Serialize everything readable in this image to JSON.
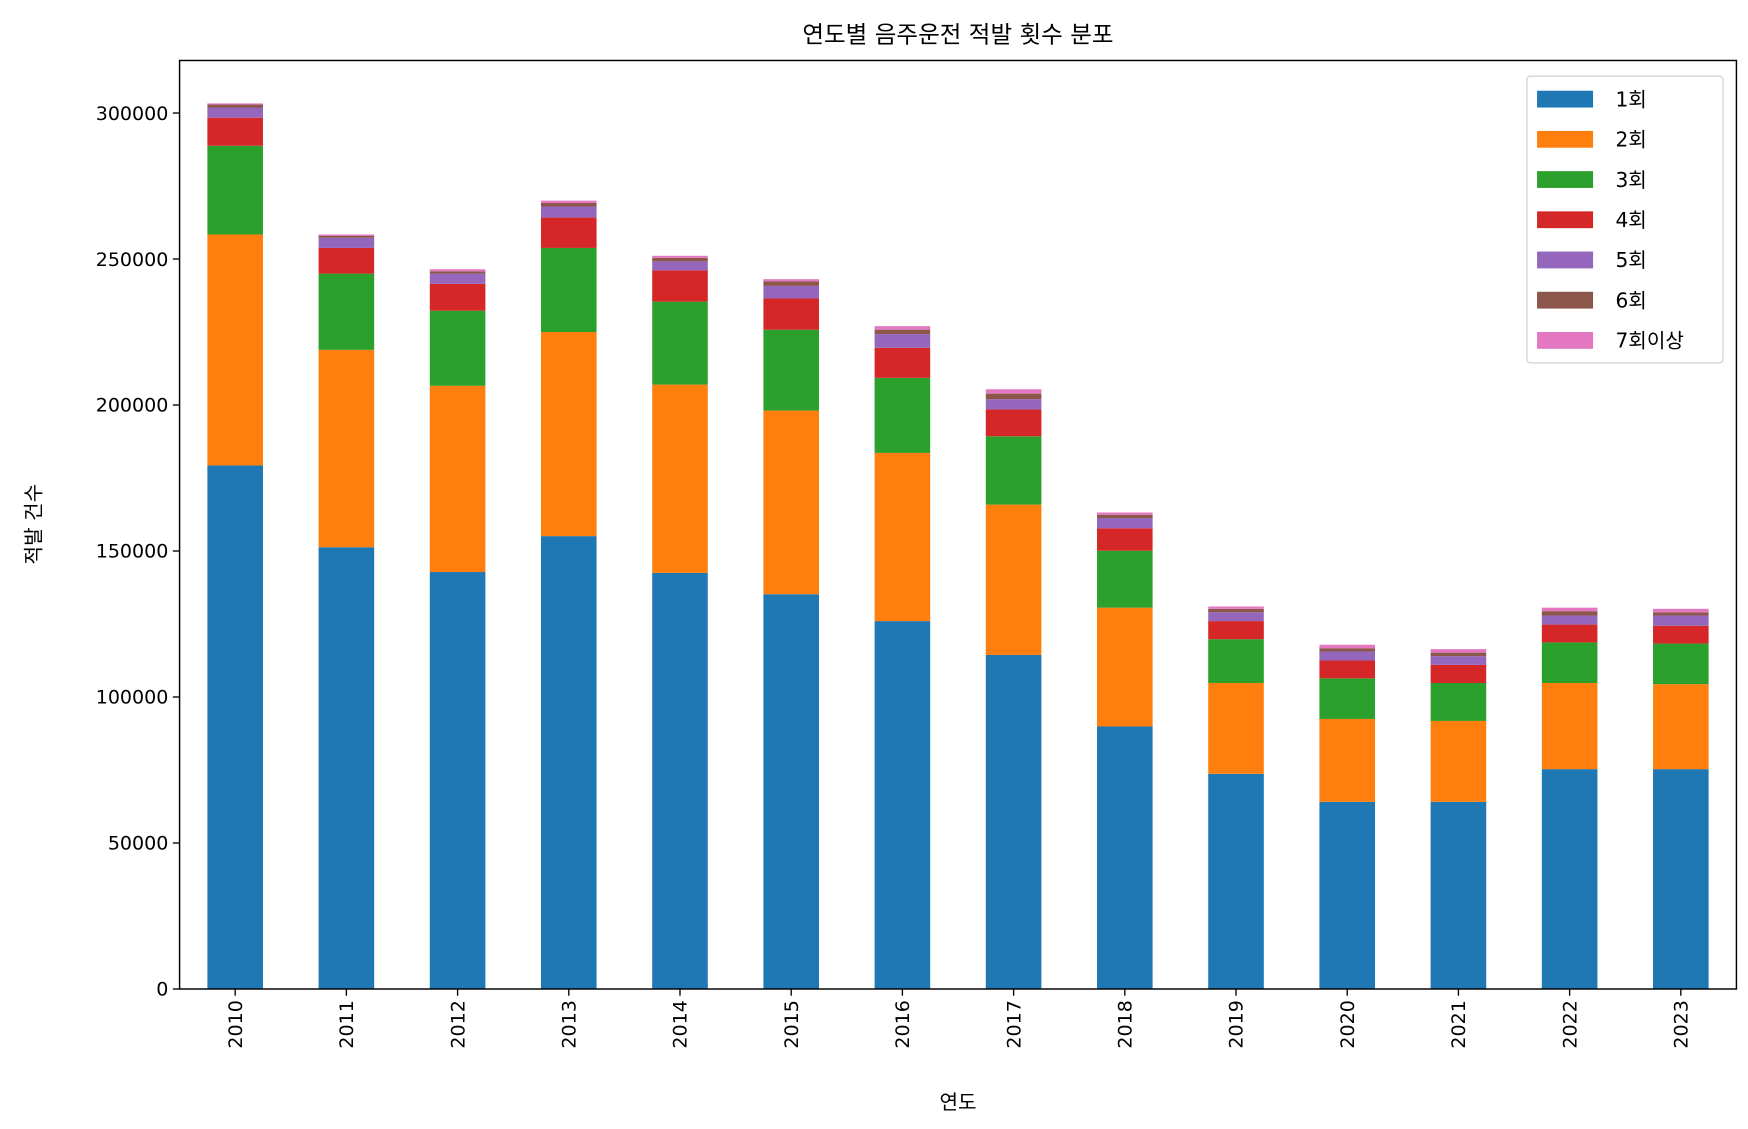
{
  "chart_data": {
    "type": "bar",
    "stacked": true,
    "title": "연도별 음주운전 적발 횟수 분포",
    "xlabel": "연도",
    "ylabel": "적발 건수",
    "ylim": [
      0,
      318000
    ],
    "yticks": [
      0,
      50000,
      100000,
      150000,
      200000,
      250000,
      300000
    ],
    "grid": false,
    "legend_position": "top-right",
    "categories": [
      "2010",
      "2011",
      "2012",
      "2013",
      "2014",
      "2015",
      "2016",
      "2017",
      "2018",
      "2019",
      "2020",
      "2021",
      "2022",
      "2023"
    ],
    "series": [
      {
        "name": "1회",
        "color": "#1f77b4",
        "values": [
          179300,
          151300,
          142800,
          155100,
          142500,
          135200,
          126000,
          114400,
          89900,
          73700,
          64100,
          64100,
          75300,
          75300
        ]
      },
      {
        "name": "2회",
        "color": "#ff7f0e",
        "values": [
          79100,
          67600,
          63800,
          69900,
          64500,
          62900,
          57600,
          51500,
          40700,
          31100,
          28400,
          27700,
          29500,
          29100
        ]
      },
      {
        "name": "3회",
        "color": "#2ca02c",
        "values": [
          30400,
          26100,
          25700,
          28800,
          28400,
          27700,
          25700,
          23400,
          19500,
          15000,
          13900,
          13000,
          13900,
          13900
        ]
      },
      {
        "name": "4회",
        "color": "#d62728",
        "values": [
          9600,
          8800,
          9200,
          10400,
          10700,
          10700,
          10300,
          9200,
          7700,
          6200,
          6100,
          6200,
          6100,
          6100
        ]
      },
      {
        "name": "5회",
        "color": "#9467bd",
        "values": [
          3500,
          3500,
          3500,
          3800,
          3100,
          4300,
          4700,
          3500,
          3500,
          3000,
          3100,
          3000,
          3100,
          3500
        ]
      },
      {
        "name": "6회",
        "color": "#8c564b",
        "values": [
          1000,
          700,
          800,
          1200,
          1200,
          1500,
          1500,
          1900,
          1100,
          1200,
          1100,
          1200,
          1500,
          1100
        ]
      },
      {
        "name": "7회이상",
        "color": "#e377c2",
        "values": [
          400,
          400,
          700,
          800,
          700,
          800,
          1200,
          1500,
          800,
          800,
          1200,
          1200,
          1200,
          1200
        ]
      }
    ]
  }
}
